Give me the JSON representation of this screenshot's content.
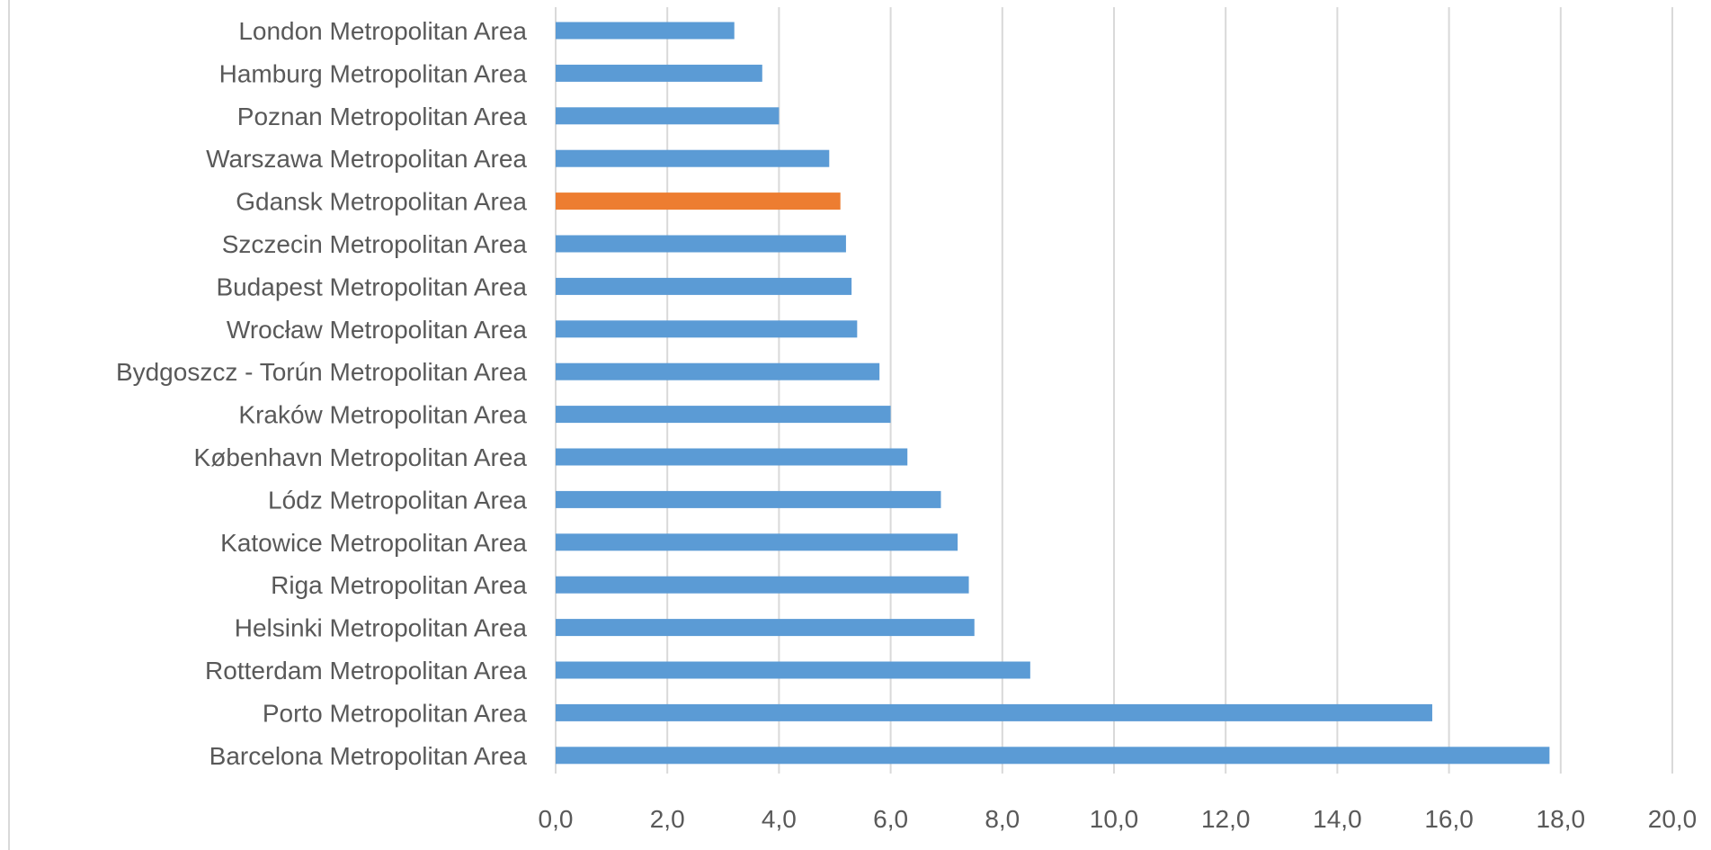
{
  "chart_data": {
    "type": "bar",
    "orientation": "horizontal",
    "categories": [
      "London Metropolitan Area",
      "Hamburg Metropolitan Area",
      "Poznan Metropolitan Area",
      "Warszawa Metropolitan Area",
      "Gdansk Metropolitan Area",
      "Szczecin Metropolitan Area",
      "Budapest Metropolitan Area",
      "Wrocław Metropolitan Area",
      "Bydgoszcz - Torún Metropolitan Area",
      "Kraków Metropolitan Area",
      "København Metropolitan Area",
      "Lódz Metropolitan Area",
      "Katowice Metropolitan Area",
      "Riga Metropolitan Area",
      "Helsinki Metropolitan Area",
      "Rotterdam Metropolitan Area",
      "Porto Metropolitan Area",
      "Barcelona Metropolitan Area"
    ],
    "values": [
      3.2,
      3.7,
      4.0,
      4.9,
      5.1,
      5.2,
      5.3,
      5.4,
      5.8,
      6.0,
      6.3,
      6.9,
      7.2,
      7.4,
      7.5,
      8.5,
      15.7,
      17.8
    ],
    "highlight_category": "Gdansk Metropolitan Area",
    "colors": {
      "bar": "#5b9bd5",
      "highlight": "#ed7d31",
      "grid": "#d9d9d9",
      "text": "#595959"
    },
    "xlim": [
      0,
      20
    ],
    "xticks": [
      "0,0",
      "2,0",
      "4,0",
      "6,0",
      "8,0",
      "10,0",
      "12,0",
      "14,0",
      "16,0",
      "18,0",
      "20,0"
    ],
    "grid": "vertical",
    "legend": "none",
    "title": "",
    "xlabel": "",
    "ylabel": ""
  }
}
